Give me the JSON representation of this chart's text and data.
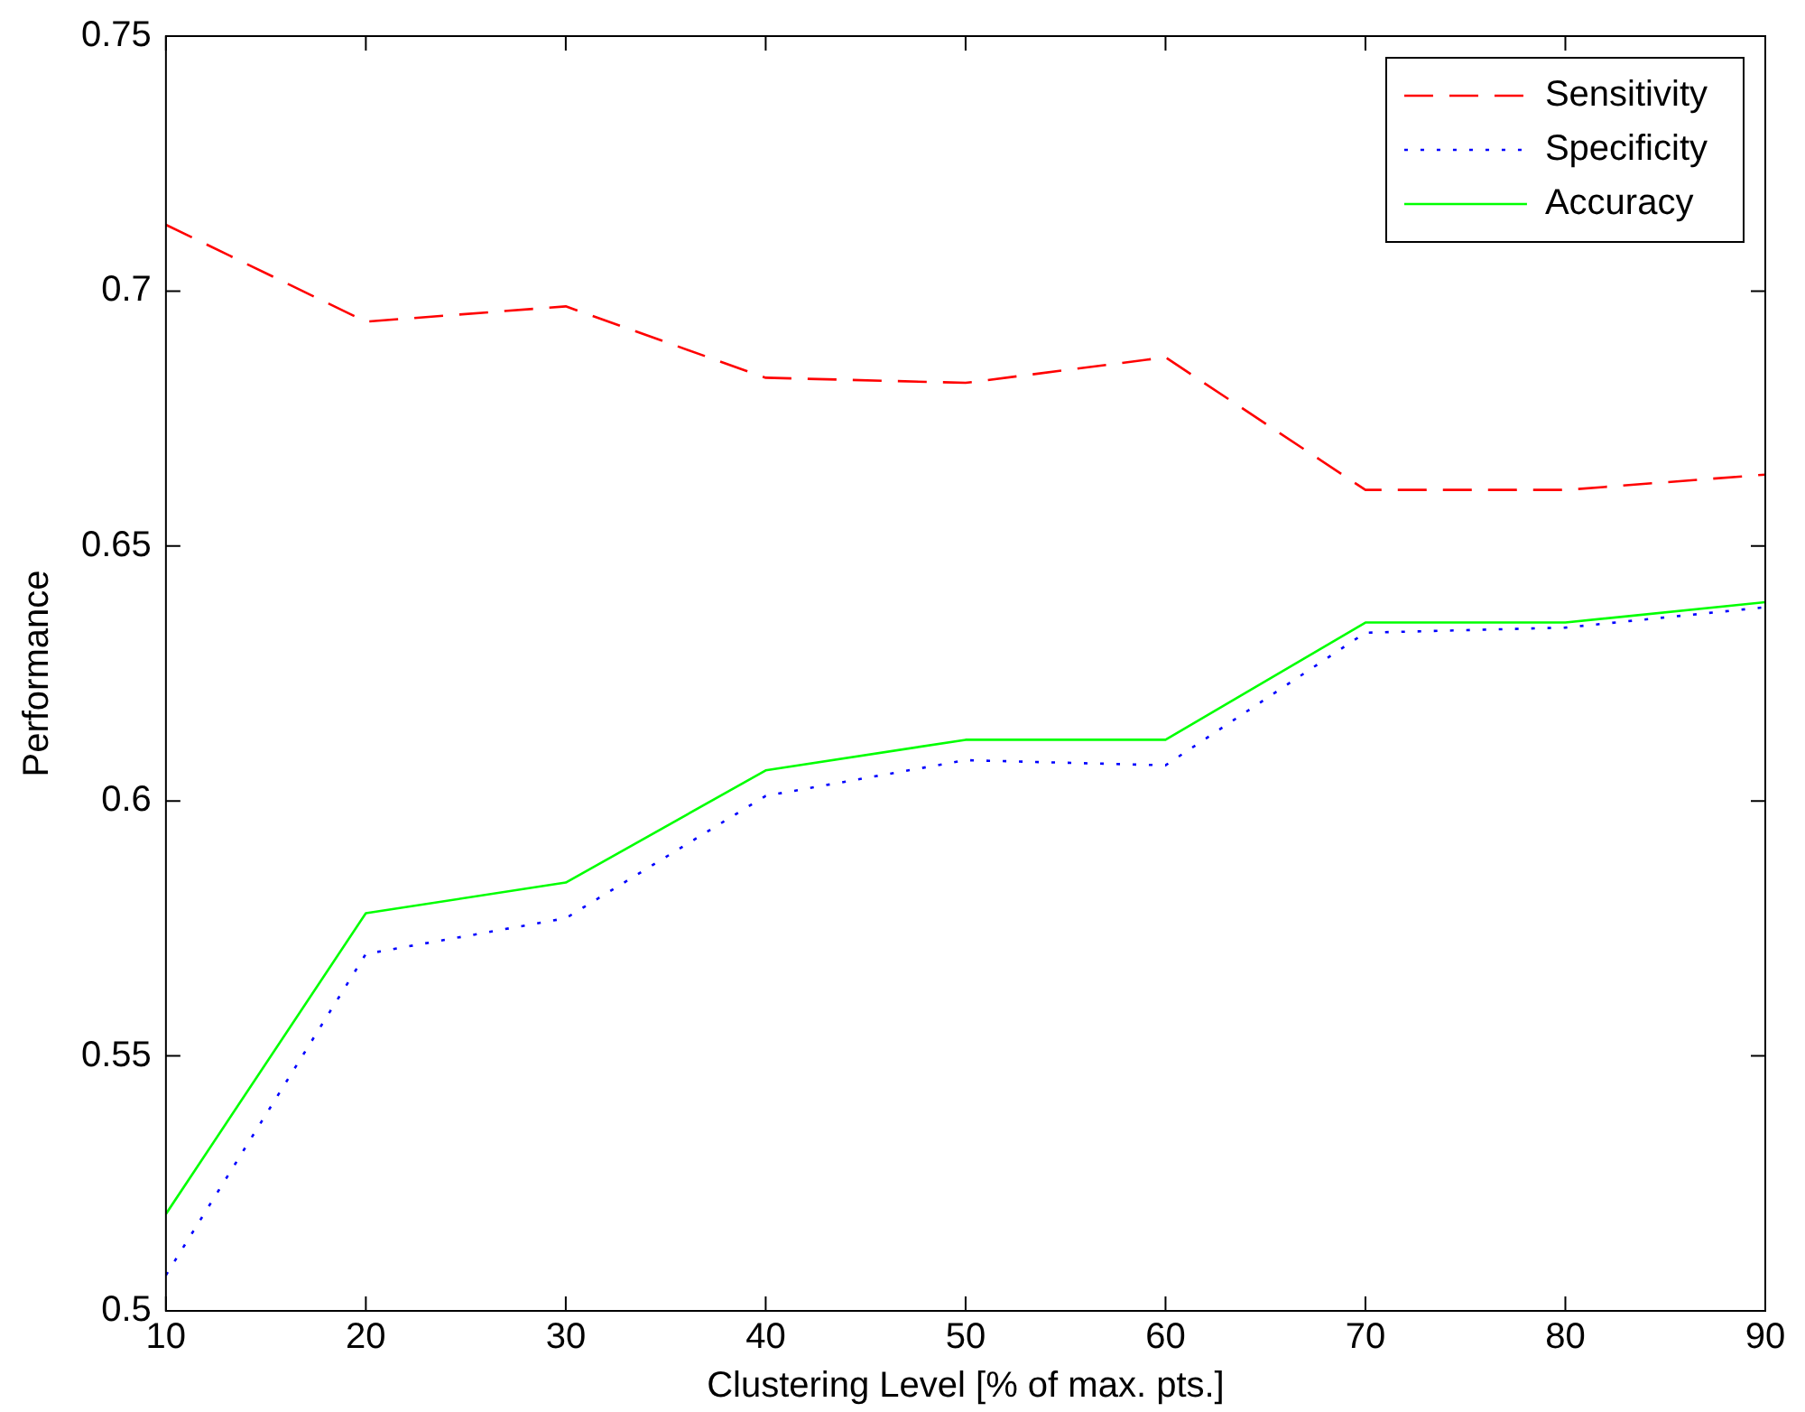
{
  "chart_data": {
    "type": "line",
    "xlabel": "Clustering Level [% of max. pts.]",
    "ylabel": "Performance",
    "x": [
      10,
      20,
      30,
      40,
      50,
      60,
      70,
      80,
      90
    ],
    "series": [
      {
        "name": "Sensitivity",
        "color": "#ff0000",
        "line_style": "dashed",
        "values": [
          0.713,
          0.694,
          0.697,
          0.683,
          0.682,
          0.687,
          0.661,
          0.661,
          0.664
        ]
      },
      {
        "name": "Specificity",
        "color": "#0000ff",
        "line_style": "dotted",
        "values": [
          0.507,
          0.57,
          0.577,
          0.601,
          0.608,
          0.607,
          0.633,
          0.634,
          0.638
        ]
      },
      {
        "name": "Accuracy",
        "color": "#00ff00",
        "line_style": "solid",
        "values": [
          0.519,
          0.578,
          0.584,
          0.606,
          0.612,
          0.612,
          0.635,
          0.635,
          0.639
        ]
      }
    ],
    "xlim": [
      10,
      90
    ],
    "xticks": [
      10,
      20,
      30,
      40,
      50,
      60,
      70,
      80,
      90
    ],
    "ylim": [
      0.5,
      0.75
    ],
    "yticks": [
      0.5,
      0.55,
      0.6,
      0.65,
      0.7,
      0.75
    ],
    "grid": false,
    "legend": "top right",
    "marker": "none"
  }
}
